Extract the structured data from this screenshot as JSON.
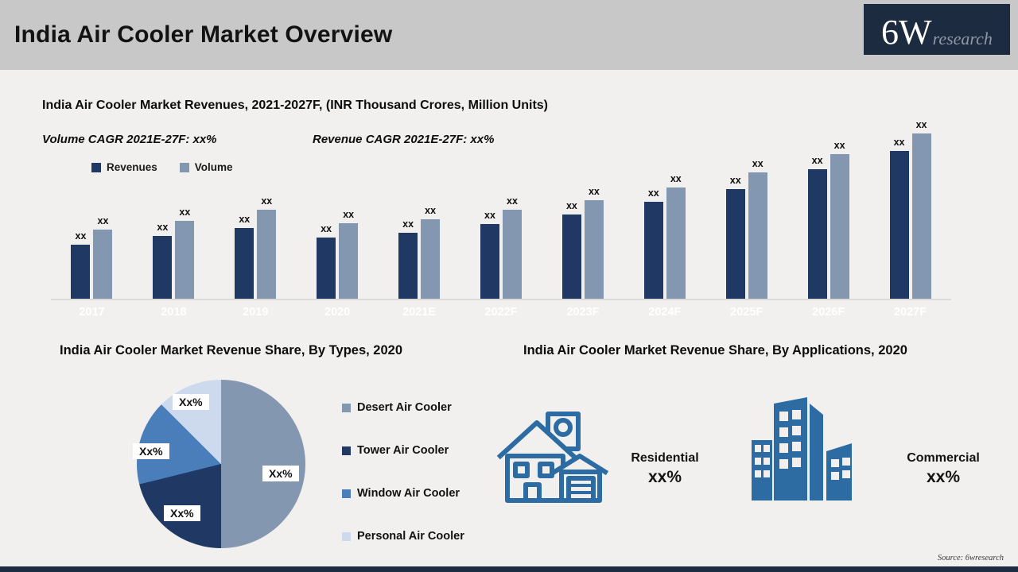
{
  "header": {
    "title": "India Air Cooler Market Overview",
    "logo_text": "6W",
    "logo_subtext": "research"
  },
  "bar_section": {
    "title": "India Air Cooler Market Revenues, 2021-2027F, (INR Thousand Crores, Million Units)",
    "volume_cagr_label": "Volume CAGR 2021E-27F: xx%",
    "revenue_cagr_label": "Revenue CAGR 2021E-27F: xx%"
  },
  "pie_section": {
    "title": "India Air Cooler Market Revenue Share, By Types, 2020"
  },
  "apps_section": {
    "title": "India Air Cooler Market Revenue Share, By Applications, 2020",
    "residential_label": "Residential",
    "residential_value": "xx%",
    "commercial_label": "Commercial",
    "commercial_value": "xx%"
  },
  "footer": {
    "source": "Source: 6wresearch"
  },
  "colors": {
    "revenues_bar": "#1F3864",
    "volume_bar": "#8497B0",
    "window_slice": "#4A7EBB",
    "personal_slice": "#CDD9EC",
    "icon_blue": "#2D6CA3",
    "header_bg": "#C8C8C8",
    "logo_bg": "#1D2B40"
  },
  "chart_data": [
    {
      "type": "bar",
      "title": "India Air Cooler Market Revenues, 2021-2027F, (INR Thousand Crores, Million Units)",
      "categories": [
        "2017",
        "2018",
        "2019",
        "2020",
        "2021E",
        "2022F",
        "2023F",
        "2024F",
        "2025F",
        "2026F",
        "2027F"
      ],
      "series": [
        {
          "name": "Revenues",
          "color": "#1F3864",
          "value_labels": [
            "xx",
            "xx",
            "xx",
            "xx",
            "xx",
            "xx",
            "xx",
            "xx",
            "xx",
            "xx",
            "xx"
          ],
          "heights_rel": [
            68,
            79,
            89,
            77,
            83,
            94,
            106,
            122,
            138,
            163,
            186
          ]
        },
        {
          "name": "Volume",
          "color": "#8497B0",
          "value_labels": [
            "xx",
            "xx",
            "xx",
            "xx",
            "xx",
            "xx",
            "xx",
            "xx",
            "xx",
            "xx",
            "xx"
          ],
          "heights_rel": [
            87,
            98,
            112,
            95,
            100,
            112,
            124,
            140,
            159,
            182,
            208
          ]
        }
      ],
      "note": "All data labels shown as xx placeholders; heights_rel are pixel-estimated relative magnitudes",
      "legend_position": "top-left",
      "grid": false,
      "x_axis_label_color": "#FFFFFF"
    },
    {
      "type": "pie",
      "title": "India Air Cooler Market Revenue Share, By Types, 2020",
      "slices": [
        {
          "label": "Desert Air Cooler",
          "value_label": "Xx%",
          "angle_deg": 180,
          "share_pct_est": 50,
          "color": "#8497B0"
        },
        {
          "label": "Tower Air Cooler",
          "value_label": "Xx%",
          "angle_deg": 76,
          "share_pct_est": 21,
          "color": "#203864"
        },
        {
          "label": "Window Air Cooler",
          "value_label": "Xx%",
          "angle_deg": 59,
          "share_pct_est": 16.5,
          "color": "#4A7EBB"
        },
        {
          "label": "Personal Air Cooler",
          "value_label": "Xx%",
          "angle_deg": 45,
          "share_pct_est": 12.5,
          "color": "#CDD9EC"
        }
      ],
      "start_angle_deg": 0,
      "legend_position": "right"
    },
    {
      "type": "pictogram",
      "title": "India Air Cooler Market Revenue Share, By Applications, 2020",
      "items": [
        {
          "label": "Residential",
          "value_label": "xx%",
          "icon": "house-icon"
        },
        {
          "label": "Commercial",
          "value_label": "xx%",
          "icon": "buildings-icon"
        }
      ]
    }
  ]
}
